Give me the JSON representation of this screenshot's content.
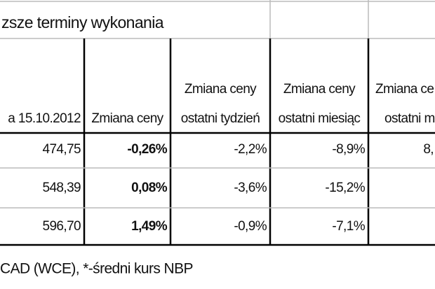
{
  "title": "zsze terminy wykonania",
  "table": {
    "header": [
      [
        "a 15.10.2012"
      ],
      [
        "Zmiana ceny"
      ],
      [
        "Zmiana ceny",
        "ostatni tydzień"
      ],
      [
        "Zmiana ceny",
        "ostatni miesiąc"
      ],
      [
        "Zmiana ce",
        "ostatni m"
      ]
    ],
    "rows": [
      [
        "474,75",
        "-0,26%",
        "-2,2%",
        "-8,9%",
        "8,"
      ],
      [
        "548,39",
        "0,08%",
        "-3,6%",
        "-15,2%"
      ],
      [
        "596,70",
        "1,49%",
        "-0,9%",
        "-7,1%"
      ]
    ]
  },
  "footer": "CAD (WCE), *-średni kurs NBP"
}
